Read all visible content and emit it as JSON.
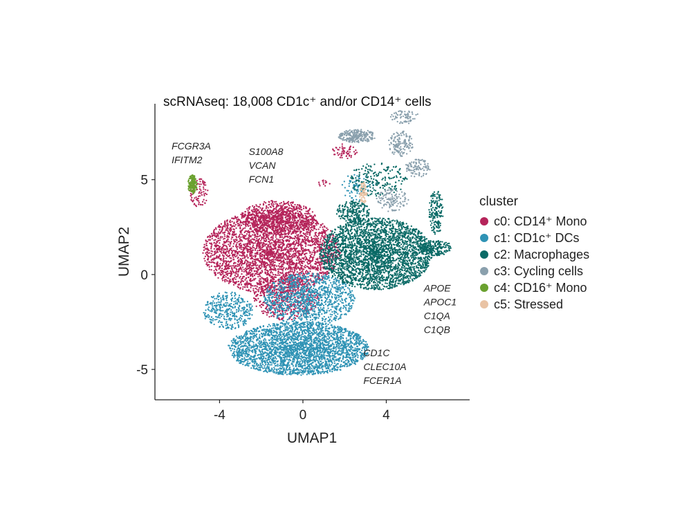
{
  "chart_data": {
    "type": "scatter",
    "title": "scRNAseq: 18,008 CD1c⁺ and/or CD14⁺ cells",
    "xlabel": "UMAP1",
    "ylabel": "UMAP2",
    "xlim": [
      -7.1,
      8.0
    ],
    "ylim": [
      -6.6,
      9.0
    ],
    "xticks": [
      -4,
      0,
      4
    ],
    "yticks": [
      -5,
      0,
      5
    ],
    "xtick_labels": [
      "-4",
      "0",
      "4"
    ],
    "ytick_labels": [
      "-5",
      "0",
      "5"
    ],
    "grid": false,
    "legend": {
      "title": "cluster",
      "placement": "right",
      "entries": [
        {
          "label": "c0: CD14⁺ Mono",
          "color": "#b5245a"
        },
        {
          "label": "c1: CD1c⁺ DCs",
          "color": "#2f93b5"
        },
        {
          "label": "c2: Macrophages",
          "color": "#0a6a66"
        },
        {
          "label": "c3: Cycling cells",
          "color": "#8aa0ad"
        },
        {
          "label": "c4: CD16⁺ Mono",
          "color": "#6aa12f"
        },
        {
          "label": "c5: Stressed",
          "color": "#e9c3a4"
        }
      ]
    },
    "series": [
      {
        "name": "c0: CD14⁺ Mono",
        "color": "#b5245a",
        "regions": [
          {
            "cx": -1.5,
            "cy": 1.2,
            "rx": 3.3,
            "ry": 2.2,
            "n": 3200
          },
          {
            "cx": -1.2,
            "cy": 3.0,
            "rx": 1.8,
            "ry": 0.9,
            "n": 700
          },
          {
            "cx": -0.8,
            "cy": -1.2,
            "rx": 1.6,
            "ry": 1.2,
            "n": 500
          },
          {
            "cx": -5.0,
            "cy": 4.3,
            "rx": 0.45,
            "ry": 0.8,
            "n": 80
          },
          {
            "cx": 2.0,
            "cy": 6.5,
            "rx": 0.6,
            "ry": 0.4,
            "n": 60
          },
          {
            "cx": 1.0,
            "cy": 4.8,
            "rx": 0.3,
            "ry": 0.2,
            "n": 12
          }
        ]
      },
      {
        "name": "c1: CD1c⁺ DCs",
        "color": "#2f93b5",
        "regions": [
          {
            "cx": -0.2,
            "cy": -3.9,
            "rx": 3.4,
            "ry": 1.4,
            "n": 2800
          },
          {
            "cx": 0.3,
            "cy": -1.3,
            "rx": 2.2,
            "ry": 1.4,
            "n": 1100
          },
          {
            "cx": -3.6,
            "cy": -1.9,
            "rx": 1.2,
            "ry": 1.0,
            "n": 350
          },
          {
            "cx": 2.6,
            "cy": 4.6,
            "rx": 0.8,
            "ry": 0.7,
            "n": 70
          }
        ]
      },
      {
        "name": "c2: Macrophages",
        "color": "#0a6a66",
        "regions": [
          {
            "cx": 3.5,
            "cy": 1.1,
            "rx": 2.7,
            "ry": 1.9,
            "n": 2900
          },
          {
            "cx": 6.3,
            "cy": 1.4,
            "rx": 0.9,
            "ry": 0.4,
            "n": 220
          },
          {
            "cx": 6.4,
            "cy": 3.3,
            "rx": 0.35,
            "ry": 1.2,
            "n": 160
          },
          {
            "cx": 2.4,
            "cy": 3.3,
            "rx": 0.8,
            "ry": 0.6,
            "n": 200
          },
          {
            "cx": 3.6,
            "cy": 5.0,
            "rx": 1.4,
            "ry": 0.9,
            "n": 200
          }
        ]
      },
      {
        "name": "c3: Cycling cells",
        "color": "#8aa0ad",
        "regions": [
          {
            "cx": 2.6,
            "cy": 7.3,
            "rx": 0.9,
            "ry": 0.35,
            "n": 240
          },
          {
            "cx": 4.7,
            "cy": 6.9,
            "rx": 0.6,
            "ry": 0.7,
            "n": 140
          },
          {
            "cx": 5.5,
            "cy": 5.6,
            "rx": 0.6,
            "ry": 0.5,
            "n": 100
          },
          {
            "cx": 4.3,
            "cy": 3.9,
            "rx": 0.8,
            "ry": 0.6,
            "n": 120
          },
          {
            "cx": 4.9,
            "cy": 8.3,
            "rx": 0.7,
            "ry": 0.35,
            "n": 70
          }
        ]
      },
      {
        "name": "c4: CD16⁺ Mono",
        "color": "#6aa12f",
        "regions": [
          {
            "cx": -5.3,
            "cy": 4.75,
            "rx": 0.22,
            "ry": 0.5,
            "n": 170
          }
        ]
      },
      {
        "name": "c5: Stressed",
        "color": "#e9c3a4",
        "regions": [
          {
            "cx": 2.9,
            "cy": 4.3,
            "rx": 0.18,
            "ry": 0.6,
            "n": 70
          }
        ]
      }
    ],
    "annotations": [
      {
        "lines": [
          "FCGR3A",
          "IFITM2"
        ],
        "x": -6.3,
        "y": 6.6
      },
      {
        "lines": [
          "S100A8",
          "VCAN",
          "FCN1"
        ],
        "x": -2.6,
        "y": 6.3
      },
      {
        "lines": [
          "APOE",
          "APOC1",
          "C1QA",
          "C1QB"
        ],
        "x": 5.8,
        "y": -0.9
      },
      {
        "lines": [
          "CD1C",
          "CLEC10A",
          "FCER1A"
        ],
        "x": 2.9,
        "y": -4.3
      }
    ]
  }
}
